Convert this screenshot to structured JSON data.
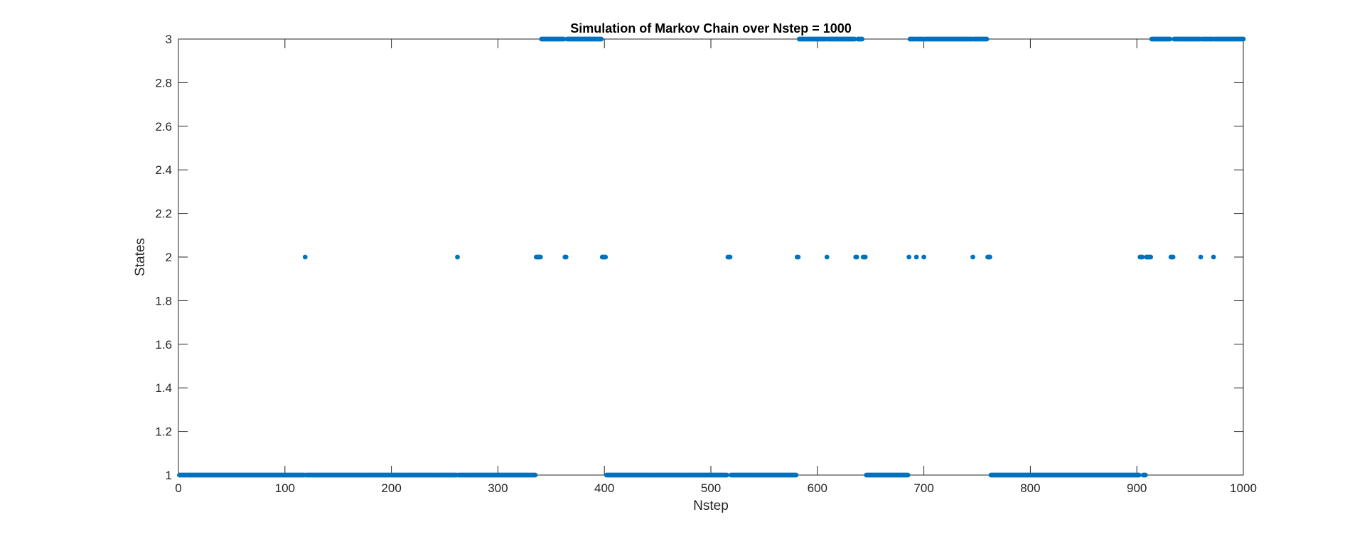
{
  "chart_data": {
    "type": "scatter",
    "title": "Simulation of Markov Chain over Nstep = 1000",
    "xlabel": "Nstep",
    "ylabel": "States",
    "xlim": [
      0,
      1000
    ],
    "ylim": [
      1,
      3
    ],
    "x_ticks": [
      "0",
      "100",
      "200",
      "300",
      "400",
      "500",
      "600",
      "700",
      "800",
      "900",
      "1000"
    ],
    "y_ticks": [
      "1",
      "1.2",
      "1.4",
      "1.6",
      "1.8",
      "2",
      "2.2",
      "2.4",
      "2.6",
      "2.8",
      "3"
    ],
    "grid": false,
    "marker_color": "#0072BD",
    "state_1_runs": [
      [
        1,
        118
      ],
      [
        120,
        261
      ],
      [
        263,
        335
      ],
      [
        402,
        515
      ],
      [
        519,
        580
      ],
      [
        646,
        685
      ],
      [
        763,
        902
      ],
      [
        906,
        908
      ]
    ],
    "state_2_points": [
      119,
      262,
      336,
      337,
      338,
      339,
      340,
      363,
      364,
      398,
      399,
      400,
      401,
      516,
      517,
      518,
      581,
      582,
      609,
      636,
      637,
      643,
      644,
      645,
      686,
      693,
      700,
      746,
      760,
      761,
      762,
      903,
      904,
      905,
      909,
      910,
      911,
      912,
      913,
      932,
      933,
      934,
      960,
      972
    ],
    "state_3_runs": [
      [
        341,
        362
      ],
      [
        365,
        397
      ],
      [
        583,
        608
      ],
      [
        610,
        635
      ],
      [
        638,
        642
      ],
      [
        687,
        692
      ],
      [
        694,
        699
      ],
      [
        701,
        745
      ],
      [
        747,
        759
      ],
      [
        914,
        931
      ],
      [
        935,
        959
      ],
      [
        961,
        971
      ],
      [
        973,
        1000
      ]
    ]
  }
}
